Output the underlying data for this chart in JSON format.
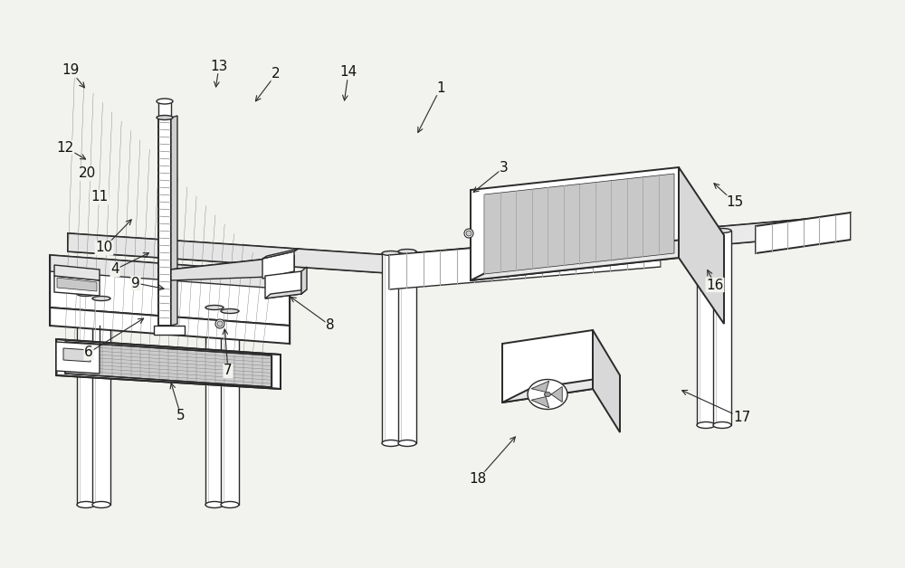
{
  "bg_color": "#f2f2ee",
  "line_color": "#2a2a2a",
  "lw": 1.0,
  "lw2": 1.4,
  "labels": [
    [
      1,
      487,
      97,
      460,
      150
    ],
    [
      2,
      305,
      82,
      280,
      115
    ],
    [
      3,
      557,
      185,
      520,
      215
    ],
    [
      4,
      127,
      298,
      168,
      278
    ],
    [
      5,
      200,
      460,
      188,
      420
    ],
    [
      6,
      98,
      390,
      162,
      350
    ],
    [
      7,
      252,
      410,
      248,
      360
    ],
    [
      8,
      365,
      360,
      318,
      326
    ],
    [
      9,
      150,
      313,
      185,
      320
    ],
    [
      10,
      115,
      274,
      148,
      240
    ],
    [
      11,
      110,
      218,
      105,
      225
    ],
    [
      12,
      72,
      163,
      98,
      178
    ],
    [
      13,
      242,
      73,
      238,
      100
    ],
    [
      14,
      385,
      80,
      380,
      115
    ],
    [
      15,
      812,
      224,
      786,
      200
    ],
    [
      16,
      790,
      315,
      780,
      295
    ],
    [
      17,
      820,
      462,
      750,
      430
    ],
    [
      18,
      528,
      530,
      572,
      480
    ],
    [
      19,
      78,
      78,
      96,
      100
    ],
    [
      20,
      97,
      192,
      90,
      200
    ]
  ]
}
